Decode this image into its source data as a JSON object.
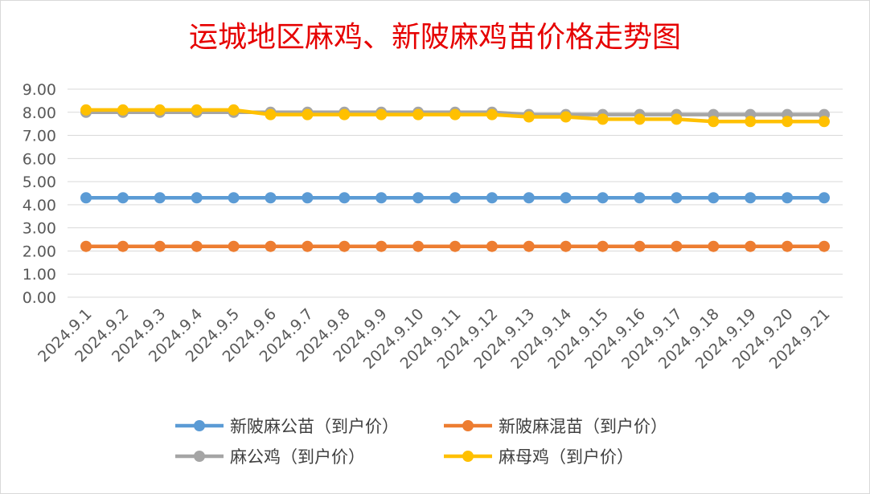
{
  "chart_data": {
    "type": "line",
    "title": "运城地区麻鸡、新陂麻鸡苗价格走势图",
    "xlabel": "",
    "ylabel": "",
    "ylim": [
      0,
      9
    ],
    "yticks": [
      "0.00",
      "1.00",
      "2.00",
      "3.00",
      "4.00",
      "5.00",
      "6.00",
      "7.00",
      "8.00",
      "9.00"
    ],
    "grid": true,
    "legend_position": "bottom",
    "categories": [
      "2024.9.1",
      "2024.9.2",
      "2024.9.3",
      "2024.9.4",
      "2024.9.5",
      "2024.9.6",
      "2024.9.7",
      "2024.9.8",
      "2024.9.9",
      "2024.9.10",
      "2024.9.11",
      "2024.9.12",
      "2024.9.13",
      "2024.9.14",
      "2024.9.15",
      "2024.9.16",
      "2024.9.17",
      "2024.9.18",
      "2024.9.19",
      "2024.9.20",
      "2024.9.21"
    ],
    "series": [
      {
        "name": "新陂麻公苗（到户价）",
        "color": "#5b9bd5",
        "values": [
          4.3,
          4.3,
          4.3,
          4.3,
          4.3,
          4.3,
          4.3,
          4.3,
          4.3,
          4.3,
          4.3,
          4.3,
          4.3,
          4.3,
          4.3,
          4.3,
          4.3,
          4.3,
          4.3,
          4.3,
          4.3
        ]
      },
      {
        "name": "新陂麻混苗（到户价）",
        "color": "#ed7d31",
        "values": [
          2.2,
          2.2,
          2.2,
          2.2,
          2.2,
          2.2,
          2.2,
          2.2,
          2.2,
          2.2,
          2.2,
          2.2,
          2.2,
          2.2,
          2.2,
          2.2,
          2.2,
          2.2,
          2.2,
          2.2,
          2.2
        ]
      },
      {
        "name": "麻公鸡（到户价）",
        "color": "#a5a5a5",
        "values": [
          8.0,
          8.0,
          8.0,
          8.0,
          8.0,
          8.0,
          8.0,
          8.0,
          8.0,
          8.0,
          8.0,
          8.0,
          7.9,
          7.9,
          7.9,
          7.9,
          7.9,
          7.9,
          7.9,
          7.9,
          7.9
        ]
      },
      {
        "name": "麻母鸡（到户价）",
        "color": "#ffc000",
        "values": [
          8.1,
          8.1,
          8.1,
          8.1,
          8.1,
          7.9,
          7.9,
          7.9,
          7.9,
          7.9,
          7.9,
          7.9,
          7.8,
          7.8,
          7.7,
          7.7,
          7.7,
          7.6,
          7.6,
          7.6,
          7.6
        ]
      }
    ]
  }
}
